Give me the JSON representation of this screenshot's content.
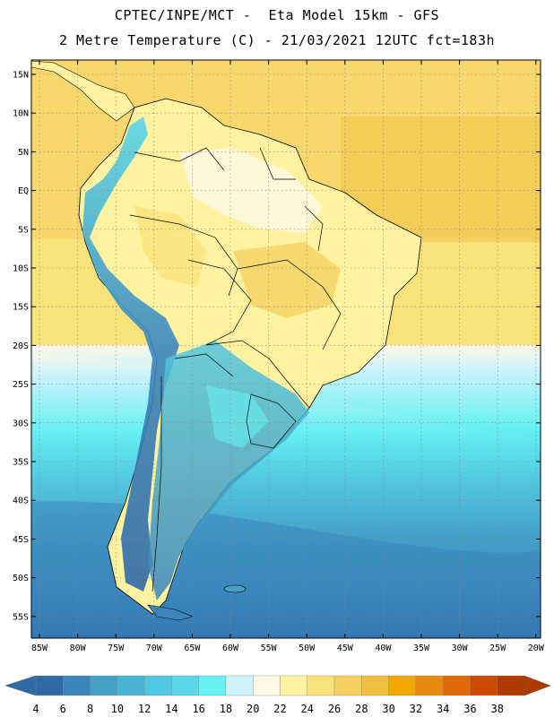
{
  "header": {
    "line1": "CPTEC/INPE/MCT -  Eta Model 15km - GFS",
    "line2": "2 Metre Temperature (C) - 21/03/2021 12UTC fct=183h"
  },
  "map": {
    "lat_labels": [
      "15N",
      "10N",
      "5N",
      "EQ",
      "5S",
      "10S",
      "15S",
      "20S",
      "25S",
      "30S",
      "35S",
      "40S",
      "45S",
      "50S",
      "55S"
    ],
    "lon_labels": [
      "85W",
      "80W",
      "75W",
      "70W",
      "65W",
      "60W",
      "55W",
      "50W",
      "45W",
      "40W",
      "35W",
      "30W",
      "25W",
      "20W"
    ],
    "grid_lines": "dotted"
  },
  "colorbar": {
    "labels": [
      "4",
      "6",
      "8",
      "10",
      "12",
      "14",
      "16",
      "18",
      "20",
      "22",
      "24",
      "26",
      "28",
      "30",
      "32",
      "34",
      "36",
      "38"
    ],
    "colors": [
      "#2f6aa6",
      "#3a85bd",
      "#45a0c8",
      "#4bb4d6",
      "#52c8e0",
      "#5ad8e8",
      "#66f0f2",
      "#cdf3fa",
      "#fff8e6",
      "#fff2a0",
      "#fae27a",
      "#f5d060",
      "#f0be40",
      "#f0a800",
      "#e88a10",
      "#de6a0a",
      "#cc4a00",
      "#b03a00"
    ],
    "left_arrow_color": "#2f6aa6",
    "right_arrow_color": "#b03a00"
  }
}
